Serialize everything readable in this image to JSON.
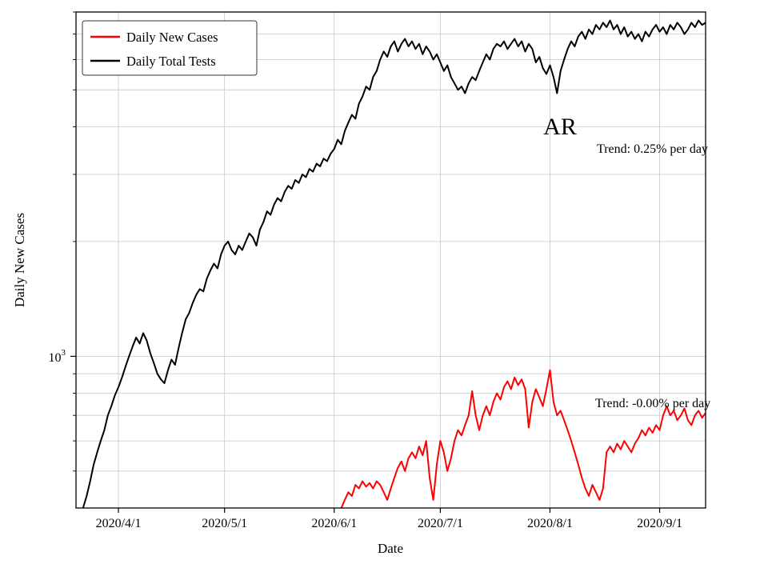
{
  "figure": {
    "state_label": "AR",
    "xlabel": "Date",
    "ylabel": "Daily New Cases",
    "y_major_tick_label": {
      "base": "10",
      "exponent": "3"
    },
    "annotations": {
      "tests_trend": "Trend: 0.25% per day",
      "cases_trend": "Trend: -0.00% per day"
    }
  },
  "chart_data": {
    "type": "line",
    "yscale": "log",
    "title": "",
    "xlabel": "Date",
    "ylabel": "Daily New Cases",
    "day0_date": "2020-03-22",
    "xlim_days": [
      -2,
      176
    ],
    "ylim": [
      400,
      8000
    ],
    "grid": true,
    "grid_color": "#c9c9c9",
    "legend_position": "upper-left",
    "x_ticks": [
      {
        "label": "2020/4/1",
        "day": 10
      },
      {
        "label": "2020/5/1",
        "day": 40
      },
      {
        "label": "2020/6/1",
        "day": 71
      },
      {
        "label": "2020/7/1",
        "day": 101
      },
      {
        "label": "2020/8/1",
        "day": 132
      },
      {
        "label": "2020/9/1",
        "day": 163
      }
    ],
    "y_gridlines": [
      500,
      600,
      700,
      800,
      900,
      1000,
      2000,
      3000,
      4000,
      5000,
      6000,
      7000,
      8000
    ],
    "y_major_ticks": [
      1000
    ],
    "series": [
      {
        "name": "Daily New Cases",
        "color": "#ff0000",
        "start_day": 73,
        "values": [
          400,
          420,
          440,
          430,
          460,
          450,
          470,
          455,
          465,
          450,
          470,
          460,
          440,
          420,
          450,
          480,
          510,
          530,
          500,
          540,
          560,
          540,
          580,
          550,
          600,
          480,
          420,
          520,
          600,
          560,
          500,
          540,
          600,
          640,
          620,
          660,
          700,
          810,
          700,
          640,
          700,
          740,
          700,
          760,
          800,
          770,
          830,
          860,
          820,
          880,
          840,
          870,
          820,
          650,
          760,
          820,
          780,
          740,
          820,
          920,
          760,
          700,
          720,
          680,
          640,
          600,
          560,
          520,
          480,
          450,
          430,
          460,
          440,
          420,
          450,
          560,
          580,
          560,
          590,
          570,
          600,
          580,
          560,
          590,
          610,
          640,
          620,
          650,
          630,
          660,
          640,
          700,
          740,
          700,
          720,
          680,
          700,
          730,
          680,
          660,
          700,
          720,
          690,
          710
        ]
      },
      {
        "name": "Daily Total Tests",
        "color": "#000000",
        "start_day": 0,
        "values": [
          400,
          430,
          470,
          520,
          560,
          600,
          640,
          700,
          740,
          790,
          830,
          880,
          940,
          1000,
          1060,
          1120,
          1080,
          1150,
          1100,
          1020,
          960,
          900,
          870,
          850,
          920,
          980,
          950,
          1050,
          1150,
          1250,
          1300,
          1380,
          1450,
          1500,
          1480,
          1600,
          1680,
          1750,
          1700,
          1850,
          1950,
          2000,
          1900,
          1850,
          1950,
          1900,
          2000,
          2100,
          2050,
          1950,
          2150,
          2250,
          2400,
          2350,
          2500,
          2600,
          2550,
          2700,
          2800,
          2750,
          2900,
          2850,
          3000,
          2950,
          3100,
          3050,
          3200,
          3150,
          3300,
          3250,
          3400,
          3500,
          3700,
          3600,
          3900,
          4100,
          4300,
          4200,
          4600,
          4800,
          5100,
          5000,
          5400,
          5600,
          6000,
          6300,
          6100,
          6500,
          6700,
          6300,
          6600,
          6800,
          6500,
          6700,
          6400,
          6600,
          6200,
          6500,
          6300,
          6000,
          6200,
          5900,
          5600,
          5800,
          5400,
          5200,
          5000,
          5100,
          4900,
          5200,
          5400,
          5300,
          5600,
          5900,
          6200,
          6000,
          6400,
          6600,
          6500,
          6700,
          6400,
          6600,
          6800,
          6500,
          6700,
          6300,
          6600,
          6400,
          5900,
          6100,
          5700,
          5500,
          5800,
          5400,
          4900,
          5600,
          6000,
          6400,
          6700,
          6500,
          6900,
          7100,
          6800,
          7200,
          7000,
          7400,
          7200,
          7500,
          7300,
          7600,
          7200,
          7400,
          7000,
          7300,
          6900,
          7100,
          6800,
          7000,
          6700,
          7100,
          6900,
          7200,
          7400,
          7100,
          7300,
          7000,
          7400,
          7200,
          7500,
          7300,
          7000,
          7200,
          7500,
          7300,
          7600,
          7400,
          7500
        ]
      }
    ]
  }
}
